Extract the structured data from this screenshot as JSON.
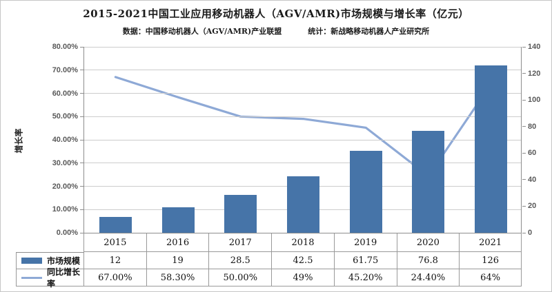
{
  "title": "2015-2021中国工业应用移动机器人（AGV/AMR)市场规模与增长率（亿元）",
  "subtitle": {
    "source": "数据：中国移动机器人（AGV/AMR)产业联盟",
    "stats": "统计：新战略移动机器人产业研究所"
  },
  "colors": {
    "bar": "#4674a8",
    "line": "#8ea9d6",
    "gridline": "#cccccc",
    "axis": "#8c8c8c",
    "table_border": "#999999",
    "tick_text": "#595959"
  },
  "chart_data": {
    "type": "bar",
    "subtype": "bar+line combo, dual axis, with data table",
    "categories": [
      "2015",
      "2016",
      "2017",
      "2018",
      "2019",
      "2020",
      "2021"
    ],
    "series": [
      {
        "name": "市场规模",
        "type": "bar",
        "axis": "right",
        "values": [
          12,
          19,
          28.5,
          42.5,
          61.75,
          76.8,
          126
        ],
        "display": [
          "12",
          "19",
          "28.5",
          "42.5",
          "61.75",
          "76.8",
          "126"
        ]
      },
      {
        "name": "同比增长率",
        "type": "line",
        "axis": "left",
        "values": [
          67.0,
          58.3,
          50.0,
          49.0,
          45.2,
          24.4,
          64.0
        ],
        "display": [
          "67.00%",
          "58.30%",
          "50.00%",
          "49%",
          "45.20%",
          "24.40%",
          "64%"
        ]
      }
    ],
    "title": "2015-2021中国工业应用移动机器人（AGV/AMR)市场规模与增长率（亿元）",
    "left_axis": {
      "title": "增长率",
      "min": 0,
      "max": 80,
      "step": 10,
      "tick_labels": [
        "0.00%",
        "10.00%",
        "20.00%",
        "30.00%",
        "40.00%",
        "50.00%",
        "60.00%",
        "70.00%",
        "80.00%"
      ]
    },
    "right_axis": {
      "min": 0,
      "max": 140,
      "step": 20,
      "tick_labels": [
        "0",
        "20",
        "40",
        "60",
        "80",
        "100",
        "120",
        "140"
      ]
    },
    "grid": true,
    "legend_position": "data-table-left"
  }
}
